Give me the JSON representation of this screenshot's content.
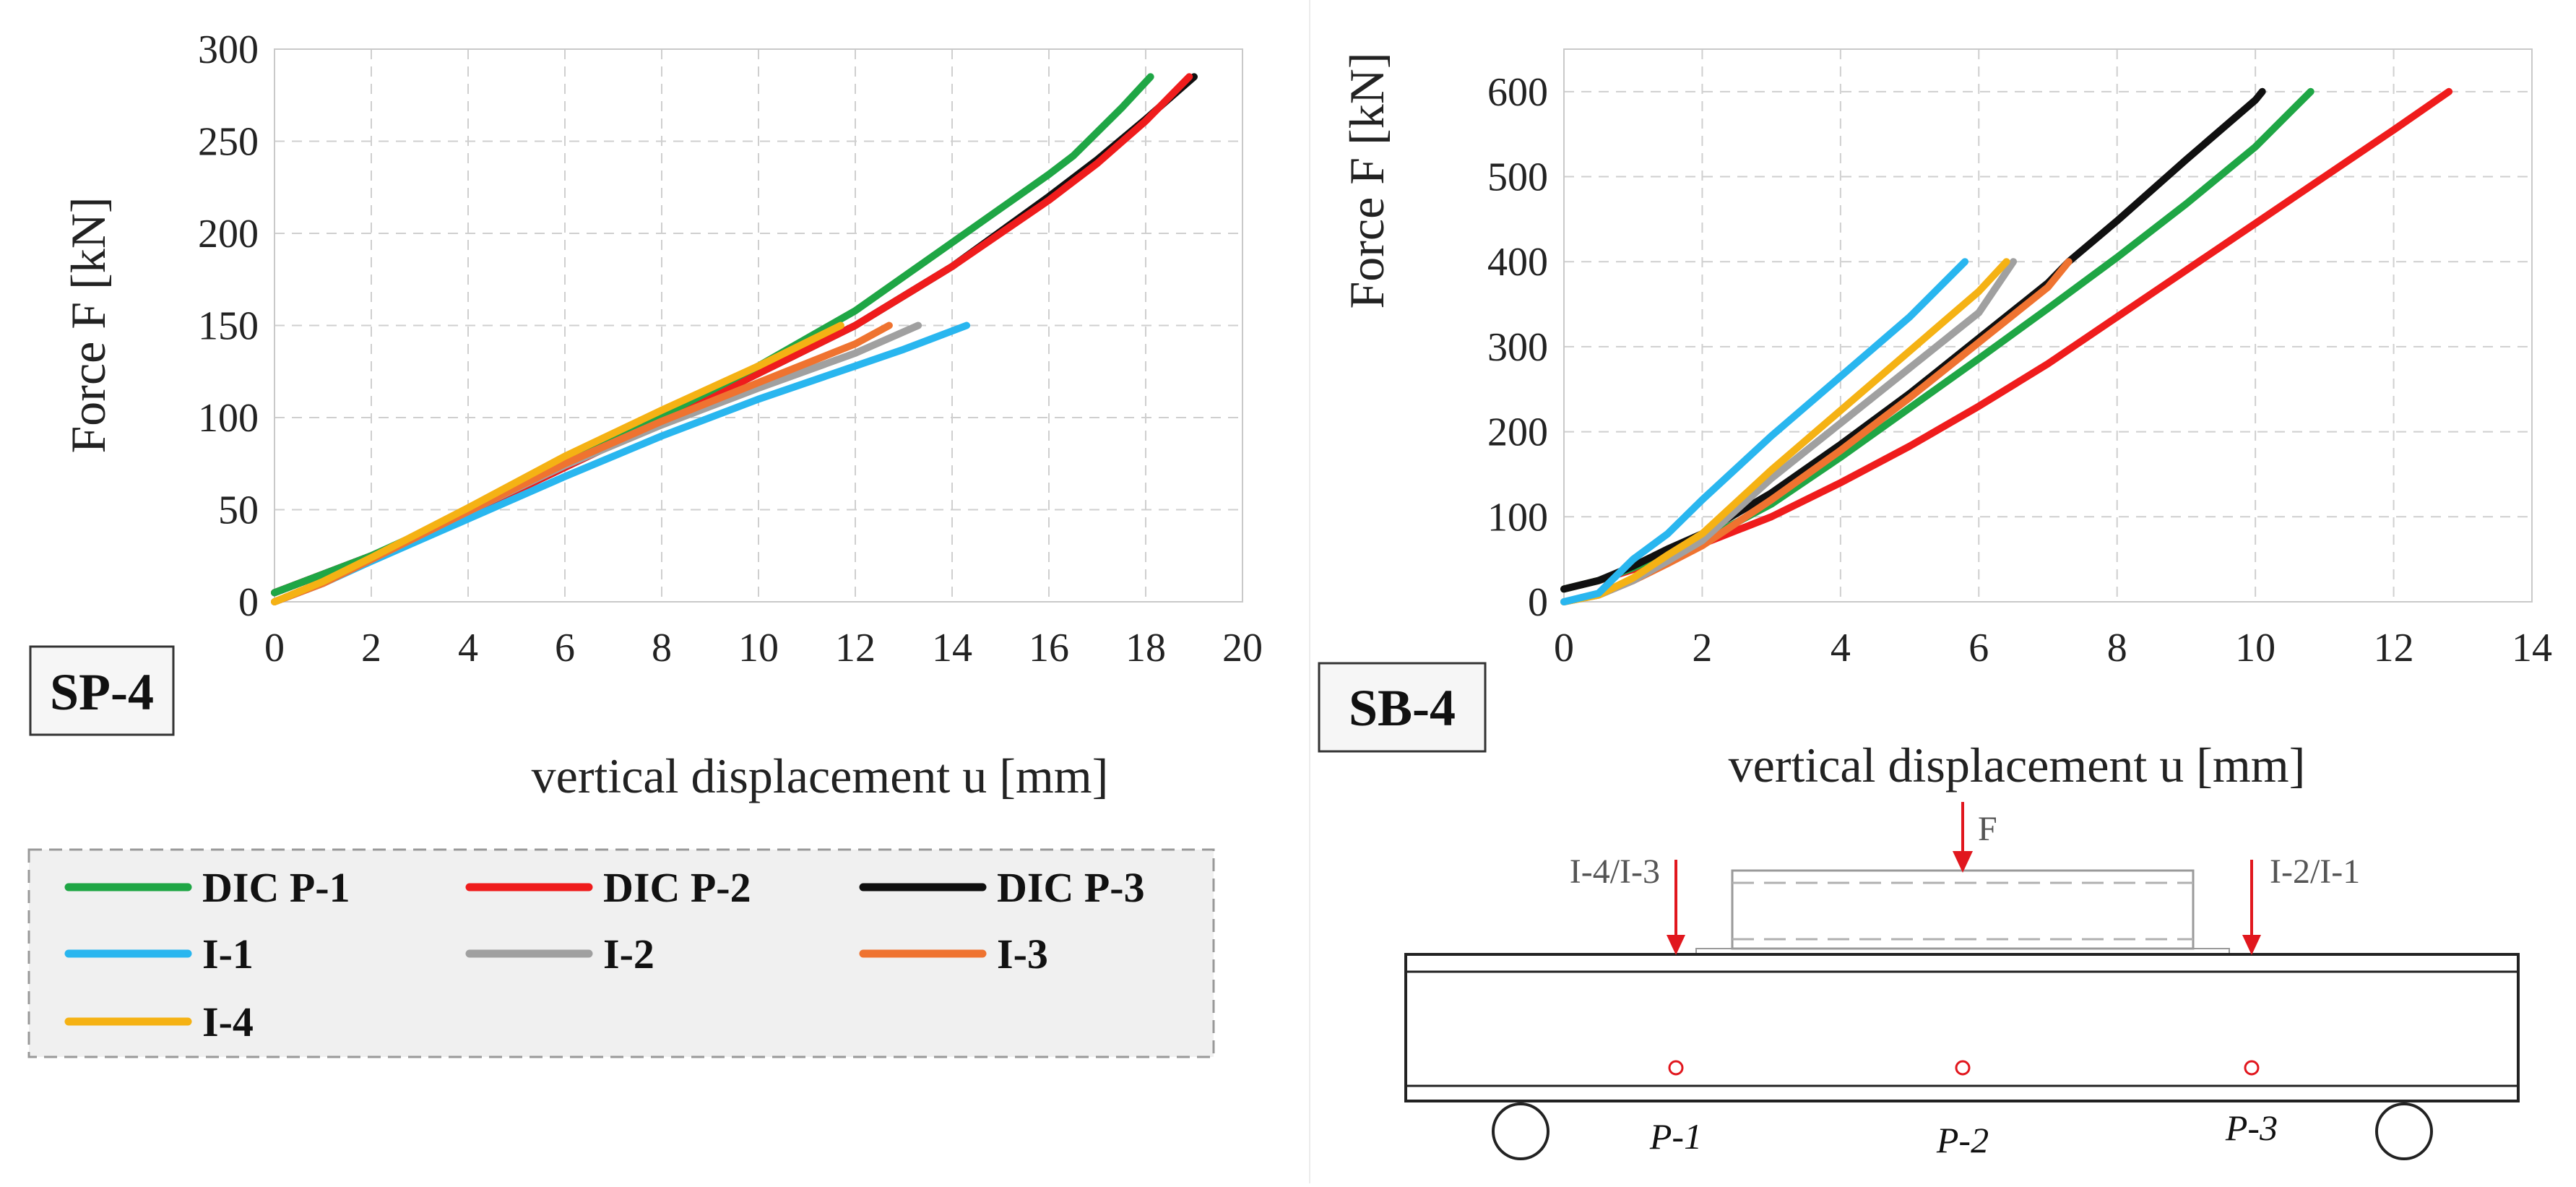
{
  "colors": {
    "DIC P-1": "#1fa645",
    "DIC P-2": "#ef1c1c",
    "DIC P-3": "#101010",
    "I-1": "#29b6ef",
    "I-2": "#a0a0a0",
    "I-3": "#ef7330",
    "I-4": "#f5b214",
    "grid": "#cfcfcf",
    "diagram_red": "#e1171e"
  },
  "chart_data": [
    {
      "id": "SP-4",
      "type": "line",
      "specimen_label": "SP-4",
      "xlabel": "vertical displacement u [mm]",
      "ylabel": "Force F [kN]",
      "xlim": [
        0,
        20
      ],
      "ylim": [
        0,
        300
      ],
      "xticks": [
        0,
        2,
        4,
        6,
        8,
        10,
        12,
        14,
        16,
        18,
        20
      ],
      "yticks": [
        0,
        50,
        100,
        150,
        200,
        250,
        300
      ],
      "grid": true,
      "series": [
        {
          "name": "DIC P-3",
          "x": [
            0,
            2,
            4,
            6,
            8,
            10,
            12,
            14,
            16,
            17,
            18,
            19.0
          ],
          "y": [
            5,
            25,
            48,
            73,
            98,
            124,
            150,
            182,
            220,
            240,
            262,
            285
          ]
        },
        {
          "name": "DIC P-2",
          "x": [
            0,
            2,
            4,
            6,
            8,
            10,
            12,
            14,
            16,
            17,
            18,
            18.9
          ],
          "y": [
            5,
            25,
            48,
            73,
            98,
            124,
            150,
            182,
            218,
            238,
            261,
            285
          ]
        },
        {
          "name": "DIC P-1",
          "x": [
            0,
            2,
            4,
            6,
            8,
            10,
            12,
            14,
            16,
            16.5,
            17.5,
            18.1
          ],
          "y": [
            5,
            25,
            49,
            75,
            101,
            128,
            158,
            195,
            232,
            242,
            268,
            285
          ]
        },
        {
          "name": "I-1",
          "x": [
            0,
            1,
            2,
            4,
            6,
            8,
            10,
            12,
            13,
            14.3
          ],
          "y": [
            0,
            10,
            22,
            45,
            68,
            90,
            110,
            128,
            137,
            150
          ]
        },
        {
          "name": "I-2",
          "x": [
            0,
            1,
            2,
            4,
            6,
            8,
            10,
            12,
            13.3
          ],
          "y": [
            0,
            10,
            23,
            49,
            74,
            96,
            116,
            135,
            150
          ]
        },
        {
          "name": "I-3",
          "x": [
            0,
            1,
            2,
            4,
            6,
            8,
            10,
            12,
            12.7
          ],
          "y": [
            0,
            10,
            23,
            49,
            75,
            98,
            119,
            140,
            150
          ]
        },
        {
          "name": "I-4",
          "x": [
            0,
            1,
            2,
            4,
            6,
            8,
            10,
            11.7
          ],
          "y": [
            0,
            11,
            24,
            51,
            79,
            104,
            128,
            150
          ]
        }
      ]
    },
    {
      "id": "SB-4",
      "type": "line",
      "specimen_label": "SB-4",
      "xlabel": "vertical displacement u [mm]",
      "ylabel": "Force F [kN]",
      "xlim": [
        0,
        14
      ],
      "ylim": [
        0,
        650
      ],
      "xticks": [
        0,
        2,
        4,
        6,
        8,
        10,
        12,
        14
      ],
      "yticks": [
        0,
        100,
        200,
        300,
        400,
        500,
        600
      ],
      "grid": true,
      "series": [
        {
          "name": "DIC P-2",
          "x": [
            0,
            0.5,
            1,
            1.5,
            2,
            3,
            4,
            5,
            6,
            7,
            8,
            9,
            10,
            11,
            12,
            12.8
          ],
          "y": [
            15,
            25,
            38,
            55,
            68,
            100,
            140,
            183,
            230,
            280,
            335,
            390,
            445,
            500,
            555,
            600
          ]
        },
        {
          "name": "DIC P-1",
          "x": [
            0,
            0.5,
            1,
            1.5,
            2,
            3,
            4,
            5,
            6,
            7,
            8,
            9,
            10,
            10.8
          ],
          "y": [
            15,
            25,
            40,
            58,
            72,
            115,
            170,
            228,
            286,
            345,
            405,
            468,
            535,
            600
          ]
        },
        {
          "name": "DIC P-3",
          "x": [
            0,
            0.5,
            1,
            1.5,
            2,
            3,
            4,
            5,
            6,
            7,
            7.3,
            8,
            9,
            10,
            10.1
          ],
          "y": [
            15,
            25,
            42,
            62,
            80,
            128,
            185,
            245,
            310,
            375,
            400,
            448,
            520,
            590,
            600
          ]
        },
        {
          "name": "I-3",
          "x": [
            0,
            0.5,
            1,
            1.5,
            2,
            3,
            4,
            5,
            6,
            7,
            7.3
          ],
          "y": [
            0,
            8,
            25,
            45,
            66,
            120,
            178,
            240,
            305,
            370,
            400
          ]
        },
        {
          "name": "I-2",
          "x": [
            0,
            0.5,
            1,
            1.5,
            2,
            3,
            4,
            5,
            6,
            6.5
          ],
          "y": [
            0,
            8,
            25,
            48,
            72,
            145,
            210,
            275,
            340,
            400
          ]
        },
        {
          "name": "I-4",
          "x": [
            0,
            0.5,
            1,
            1.5,
            2,
            3,
            4,
            5,
            6,
            6.4
          ],
          "y": [
            0,
            8,
            28,
            55,
            80,
            155,
            225,
            295,
            365,
            400
          ]
        },
        {
          "name": "I-1",
          "x": [
            0,
            0.5,
            1,
            1.5,
            2,
            3,
            4,
            5,
            5.8
          ],
          "y": [
            0,
            10,
            50,
            80,
            120,
            195,
            265,
            335,
            400
          ]
        }
      ]
    }
  ],
  "legend": {
    "entries": [
      "DIC P-1",
      "DIC P-2",
      "DIC P-3",
      "I-1",
      "I-2",
      "I-3",
      "I-4"
    ]
  },
  "diagram": {
    "load_label": "F",
    "left_gauge_label": "I-4/I-3",
    "right_gauge_label": "I-2/I-1",
    "points": [
      "P-1",
      "P-2",
      "P-3"
    ]
  }
}
